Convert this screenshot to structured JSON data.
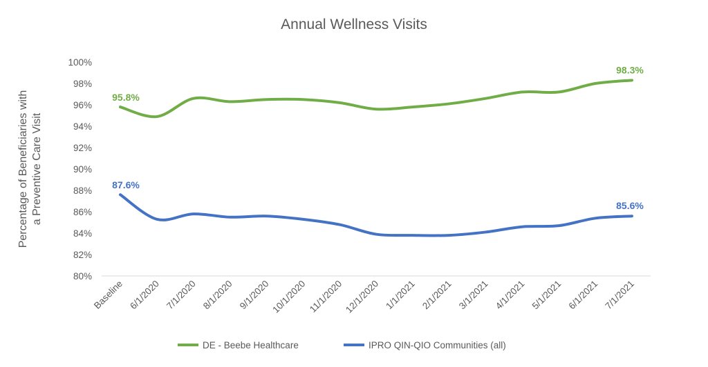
{
  "chart_data": {
    "type": "line",
    "title": "Annual Wellness Visits",
    "ylabel_lines": [
      "Percentage of Beneficiaries with",
      "a Preventive Care Visit"
    ],
    "xlabel": "",
    "ylim": [
      80,
      100
    ],
    "yticks": [
      80,
      82,
      84,
      86,
      88,
      90,
      92,
      94,
      96,
      98,
      100
    ],
    "ytick_labels": [
      "80%",
      "82%",
      "84%",
      "86%",
      "88%",
      "90%",
      "92%",
      "94%",
      "96%",
      "98%",
      "100%"
    ],
    "categories": [
      "Baseline",
      "6/1/2020",
      "7/1/2020",
      "8/1/2020",
      "9/1/2020",
      "10/1/2020",
      "11/1/2020",
      "12/1/2020",
      "1/1/2021",
      "2/1/2021",
      "3/1/2021",
      "4/1/2021",
      "5/1/2021",
      "6/1/2021",
      "7/1/2021"
    ],
    "grid": false,
    "legend_position": "bottom",
    "series": [
      {
        "name": "DE - Beebe Healthcare",
        "color": "#70ad47",
        "values": [
          95.8,
          94.9,
          96.6,
          96.3,
          96.5,
          96.5,
          96.2,
          95.6,
          95.8,
          96.1,
          96.6,
          97.2,
          97.2,
          98.0,
          98.3
        ],
        "labels": {
          "first": "95.8%",
          "last": "98.3%"
        }
      },
      {
        "name": "IPRO QIN-QIO Communities (all)",
        "color": "#4472c4",
        "values": [
          87.6,
          85.3,
          85.8,
          85.5,
          85.6,
          85.3,
          84.8,
          83.9,
          83.8,
          83.8,
          84.1,
          84.6,
          84.7,
          85.4,
          85.6
        ],
        "labels": {
          "first": "87.6%",
          "last": "85.6%"
        }
      }
    ]
  }
}
